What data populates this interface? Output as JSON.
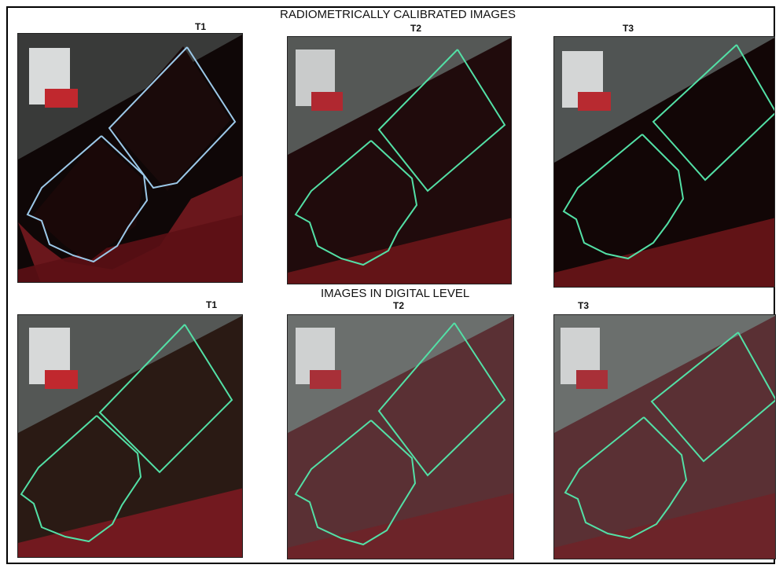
{
  "titles": {
    "top": "RADIOMETRICALLY CALIBRATED IMAGES",
    "bottom": "IMAGES IN DIGITAL LEVEL"
  },
  "rows": [
    {
      "id": "calibrated",
      "panels": [
        {
          "label": "T1"
        },
        {
          "label": "T2"
        },
        {
          "label": "T3"
        }
      ]
    },
    {
      "id": "digital",
      "panels": [
        {
          "label": "T1"
        },
        {
          "label": "T2"
        },
        {
          "label": "T3"
        }
      ]
    }
  ],
  "colors": {
    "outline_blue": "#9cc8e8",
    "outline_green": "#53e0a6",
    "soil_red": "#8a1f25",
    "field_dark": "#1a0809",
    "background_gray": "#5a5f5c"
  }
}
